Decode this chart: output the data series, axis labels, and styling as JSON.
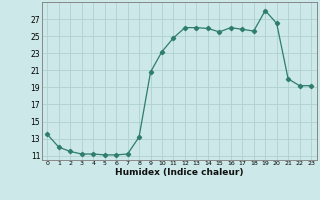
{
  "x": [
    0,
    1,
    2,
    3,
    4,
    5,
    6,
    7,
    8,
    9,
    10,
    11,
    12,
    13,
    14,
    15,
    16,
    17,
    18,
    19,
    20,
    21,
    22,
    23
  ],
  "y": [
    13.5,
    12.0,
    11.5,
    11.2,
    11.2,
    11.1,
    11.1,
    11.2,
    13.2,
    20.8,
    23.2,
    24.8,
    26.0,
    26.0,
    25.9,
    25.5,
    26.0,
    25.8,
    25.6,
    28.0,
    26.5,
    20.0,
    19.2,
    19.2
  ],
  "xlabel": "Humidex (Indice chaleur)",
  "yticks": [
    11,
    13,
    15,
    17,
    19,
    21,
    23,
    25,
    27
  ],
  "xticks": [
    0,
    1,
    2,
    3,
    4,
    5,
    6,
    7,
    8,
    9,
    10,
    11,
    12,
    13,
    14,
    15,
    16,
    17,
    18,
    19,
    20,
    21,
    22,
    23
  ],
  "line_color": "#2e7d6e",
  "marker": "D",
  "marker_size": 2.2,
  "bg_color": "#cce8e8",
  "grid_color": "#b0d0d0",
  "ylim": [
    10.5,
    29.0
  ],
  "xlim": [
    -0.5,
    23.5
  ]
}
